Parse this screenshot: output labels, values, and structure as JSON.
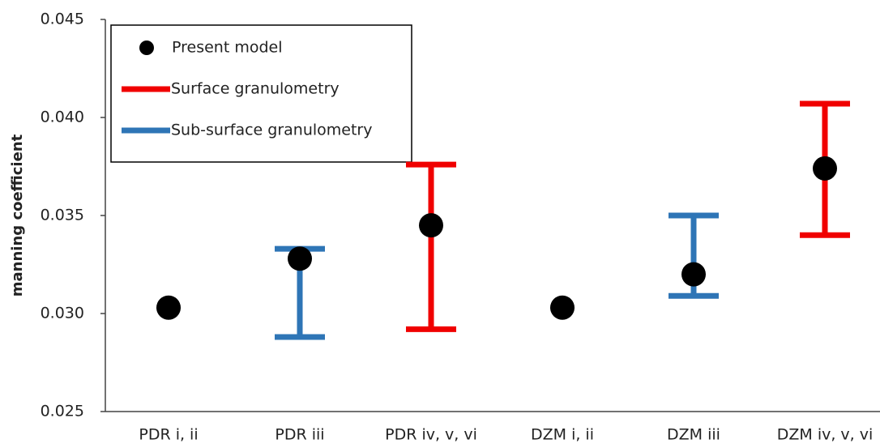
{
  "chart_data": {
    "type": "scatter",
    "y_label": "manning coefficient",
    "categories": [
      "PDR  i, ii",
      "PDR  iii",
      "PDR  iv, v, vi",
      "DZM  i, ii",
      "DZM  iii",
      "DZM  iv, v, vi"
    ],
    "ylim": [
      0.025,
      0.045
    ],
    "yticks": [
      0.025,
      {
        "value": 0.03,
        "label": "0.030"
      },
      0.035,
      {
        "value": 0.04,
        "label": "0.040"
      },
      0.045
    ],
    "series": [
      {
        "name": "Present model",
        "color": "#000000",
        "values": [
          0.0303,
          0.0328,
          0.0345,
          0.0303,
          0.032,
          0.0374
        ]
      },
      {
        "name": "Surface granulometry",
        "color": "#f00000",
        "low": [
          null,
          null,
          0.0292,
          null,
          null,
          0.034
        ],
        "high": [
          null,
          null,
          0.0376,
          null,
          null,
          0.0407
        ]
      },
      {
        "name": "Sub-surface granulometry",
        "color": "#2e75b6",
        "low": [
          null,
          0.0288,
          null,
          null,
          0.0309,
          null
        ],
        "high": [
          null,
          0.0333,
          null,
          null,
          0.035,
          null
        ]
      }
    ]
  }
}
